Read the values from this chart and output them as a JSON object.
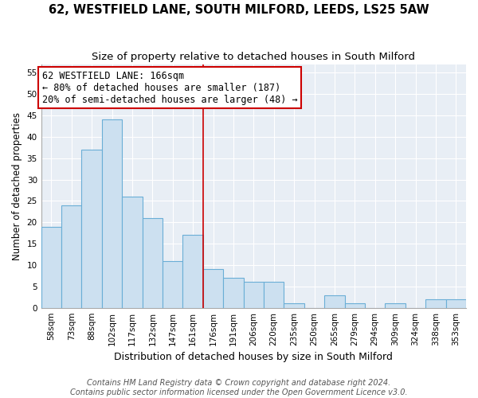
{
  "title": "62, WESTFIELD LANE, SOUTH MILFORD, LEEDS, LS25 5AW",
  "subtitle": "Size of property relative to detached houses in South Milford",
  "xlabel": "Distribution of detached houses by size in South Milford",
  "ylabel": "Number of detached properties",
  "bar_labels": [
    "58sqm",
    "73sqm",
    "88sqm",
    "102sqm",
    "117sqm",
    "132sqm",
    "147sqm",
    "161sqm",
    "176sqm",
    "191sqm",
    "206sqm",
    "220sqm",
    "235sqm",
    "250sqm",
    "265sqm",
    "279sqm",
    "294sqm",
    "309sqm",
    "324sqm",
    "338sqm",
    "353sqm"
  ],
  "bar_values": [
    19,
    24,
    37,
    44,
    26,
    21,
    11,
    17,
    9,
    7,
    6,
    6,
    1,
    0,
    3,
    1,
    0,
    1,
    0,
    2,
    2
  ],
  "bar_color": "#cce0f0",
  "bar_edge_color": "#6aaed6",
  "vline_x_index": 7,
  "vline_color": "#cc0000",
  "annotation_line1": "62 WESTFIELD LANE: 166sqm",
  "annotation_line2": "← 80% of detached houses are smaller (187)",
  "annotation_line3": "20% of semi-detached houses are larger (48) →",
  "annotation_box_color": "#ffffff",
  "annotation_box_edgecolor": "#cc0000",
  "ylim": [
    0,
    57
  ],
  "yticks": [
    0,
    5,
    10,
    15,
    20,
    25,
    30,
    35,
    40,
    45,
    50,
    55
  ],
  "ax_bg_color": "#e8eef5",
  "grid_color": "#ffffff",
  "footer_line1": "Contains HM Land Registry data © Crown copyright and database right 2024.",
  "footer_line2": "Contains public sector information licensed under the Open Government Licence v3.0.",
  "title_fontsize": 10.5,
  "subtitle_fontsize": 9.5,
  "xlabel_fontsize": 9,
  "ylabel_fontsize": 8.5,
  "tick_fontsize": 7.5,
  "annotation_fontsize": 8.5,
  "footer_fontsize": 7
}
